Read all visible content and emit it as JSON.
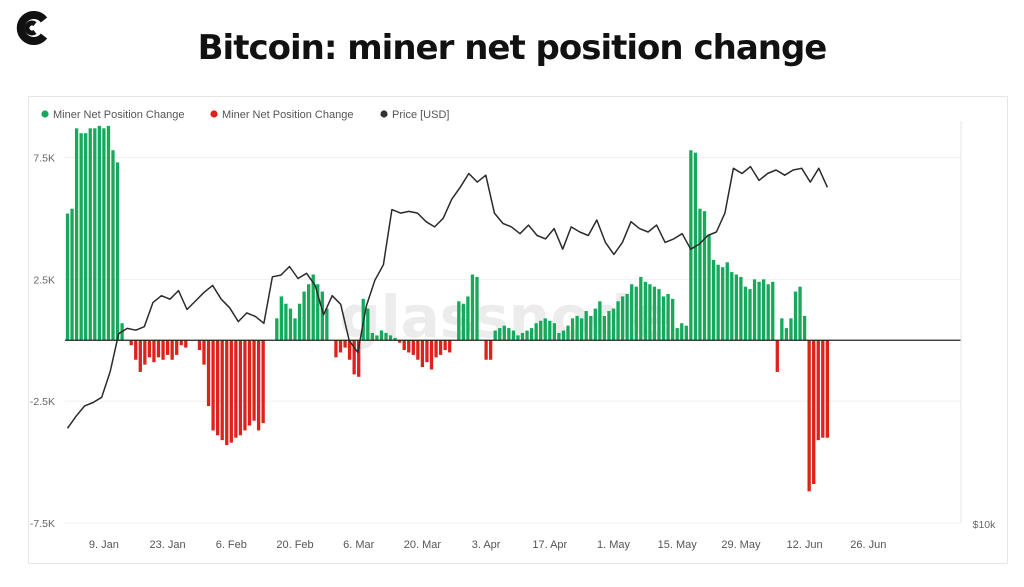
{
  "header": {
    "title": "Bitcoin: miner net position change"
  },
  "brand": {
    "logo_name": "coindesk-logo",
    "watermark": "glassnode"
  },
  "chart_data": {
    "type": "bar",
    "legend": [
      {
        "label": "Miner Net Position Change",
        "color": "#16a85b"
      },
      {
        "label": "Miner Net Position Change",
        "color": "#e0201b"
      },
      {
        "label": "Price [USD]",
        "color": "#333333"
      }
    ],
    "y_ticks": [
      "7.5K",
      "2.5K",
      "-2.5K",
      "-7.5K"
    ],
    "y_tick_values": [
      7500,
      2500,
      -2500,
      -7500
    ],
    "ylim": [
      -7500,
      9000
    ],
    "right_axis_label": "$10k",
    "x_ticks": [
      "9. Jan",
      "23. Jan",
      "6. Feb",
      "20. Feb",
      "6. Mar",
      "20. Mar",
      "3. Apr",
      "17. Apr",
      "1. May",
      "15. May",
      "29. May",
      "12. Jun",
      "26. Jun"
    ],
    "x_tick_index": [
      8,
      22,
      36,
      50,
      64,
      78,
      92,
      106,
      120,
      134,
      148,
      162,
      176
    ],
    "positive_color": "#16a85b",
    "negative_color": "#e0201b",
    "values": [
      5200,
      5400,
      8700,
      8500,
      8500,
      8700,
      8700,
      8800,
      8700,
      8800,
      7800,
      7300,
      700,
      0,
      -200,
      -800,
      -1300,
      -1000,
      -700,
      -900,
      -700,
      -800,
      -600,
      -800,
      -600,
      -200,
      -300,
      0,
      0,
      -400,
      -1000,
      -2700,
      -3700,
      -3900,
      -4100,
      -4300,
      -4200,
      -4000,
      -3900,
      -3700,
      -3500,
      -3300,
      -3700,
      -3400,
      0,
      0,
      900,
      1800,
      1500,
      1300,
      900,
      1500,
      2000,
      2300,
      2700,
      2300,
      2000,
      1300,
      0,
      -700,
      -500,
      -300,
      -800,
      -1400,
      -1500,
      1700,
      1300,
      300,
      200,
      400,
      300,
      200,
      100,
      -100,
      -400,
      -500,
      -600,
      -800,
      -1100,
      -900,
      -1200,
      -700,
      -600,
      -400,
      -500,
      0,
      1600,
      1500,
      1800,
      2700,
      2600,
      0,
      -800,
      -800,
      400,
      500,
      600,
      500,
      400,
      200,
      300,
      400,
      500,
      700,
      800,
      900,
      800,
      700,
      300,
      400,
      600,
      900,
      1000,
      900,
      1200,
      1000,
      1300,
      1600,
      1000,
      1200,
      1300,
      1600,
      1800,
      1900,
      2300,
      2200,
      2600,
      2400,
      2300,
      2200,
      2100,
      1800,
      1900,
      1700,
      500,
      700,
      600,
      7800,
      7700,
      5400,
      5300,
      4300,
      3300,
      3100,
      3000,
      3200,
      2800,
      2700,
      2600,
      2200,
      2100,
      2500,
      2400,
      2500,
      2300,
      2400,
      -1300,
      900,
      500,
      900,
      2000,
      2200,
      1000,
      -6200,
      -5900,
      -4100,
      -4000,
      -4000
    ],
    "price_usd": [
      15500,
      16200,
      16800,
      17000,
      17300,
      18800,
      21000,
      21300,
      21200,
      21400,
      22800,
      23200,
      23000,
      23500,
      22400,
      22900,
      23400,
      23800,
      23000,
      22500,
      21700,
      22200,
      22000,
      21600,
      24300,
      24400,
      24900,
      24200,
      24500,
      23800,
      22100,
      23200,
      22700,
      20600,
      19900,
      22600,
      24100,
      25000,
      28200,
      28000,
      28100,
      28000,
      27500,
      27200,
      27700,
      28800,
      29500,
      30300,
      29800,
      30200,
      28000,
      27400,
      27200,
      26800,
      27300,
      26700,
      26500,
      27100,
      25900,
      27200,
      26900,
      26700,
      27600,
      26300,
      25600,
      26300,
      27500,
      27100,
      26900,
      27300,
      26300,
      26500,
      26800,
      25900,
      26200,
      26700,
      26900,
      28000,
      30600,
      30300,
      30700,
      29900,
      30300,
      30500,
      30200,
      30500,
      30600,
      29800,
      30600,
      29500
    ],
    "title": "Bitcoin: miner net position change"
  }
}
